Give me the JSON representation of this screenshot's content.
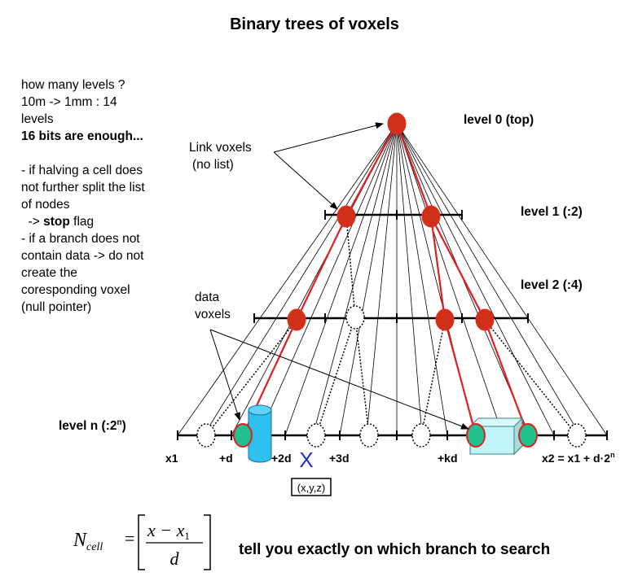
{
  "title": "Binary trees of voxels",
  "notes": [
    {
      "text": "how many levels ?",
      "bold": false
    },
    {
      "text": "10m -> 1mm : 14",
      "bold": false
    },
    {
      "text": "levels",
      "bold": false
    },
    {
      "text": "16 bits are enough...",
      "bold": true
    },
    {
      "text": " ",
      "bold": false
    },
    {
      "text": "- if halving a cell does",
      "bold": false
    },
    {
      "text": "not further split the list",
      "bold": false
    },
    {
      "text": "of nodes",
      "bold": false
    },
    {
      "text": "  -> stop flag",
      "bold": false,
      "bold_part": "stop"
    },
    {
      "text": "- if a branch does not",
      "bold": false
    },
    {
      "text": "contain data -> do not",
      "bold": false
    },
    {
      "text": "create the",
      "bold": false
    },
    {
      "text": "coresponding voxel",
      "bold": false
    },
    {
      "text": "(null pointer)",
      "bold": false
    }
  ],
  "levels": {
    "l0": "level 0 (top)",
    "l1": "level 1 (:2)",
    "l2": "level 2 (:4)",
    "ln": "level n (:2",
    "ln_sup": "n",
    "ln_end": ")"
  },
  "annotations": {
    "link1": "Link voxels",
    "link2": "(no list)",
    "data1": "data",
    "data2": "voxels",
    "point": "(x,y,z)",
    "point_marker": "X"
  },
  "axis_labels": {
    "x1": "x1",
    "d": "+d",
    "d2": "+2d",
    "d3": "+3d",
    "kd": "+kd",
    "x2": "x2 = x1 + d·2",
    "x2_sup": "n"
  },
  "formula": {
    "lhs": "N",
    "lhs_sub": "cell",
    "eq": "=",
    "num": "x − x",
    "num_sub": "1",
    "den": "d",
    "caption": "tell you exactly on which branch to search"
  },
  "colors": {
    "link_voxel": "#d03018",
    "data_voxel": "#20c090",
    "red_branch": "#e02020",
    "cylinder": "#30c0f0",
    "box": "#c0f4f8",
    "point_marker": "#2030c0"
  }
}
